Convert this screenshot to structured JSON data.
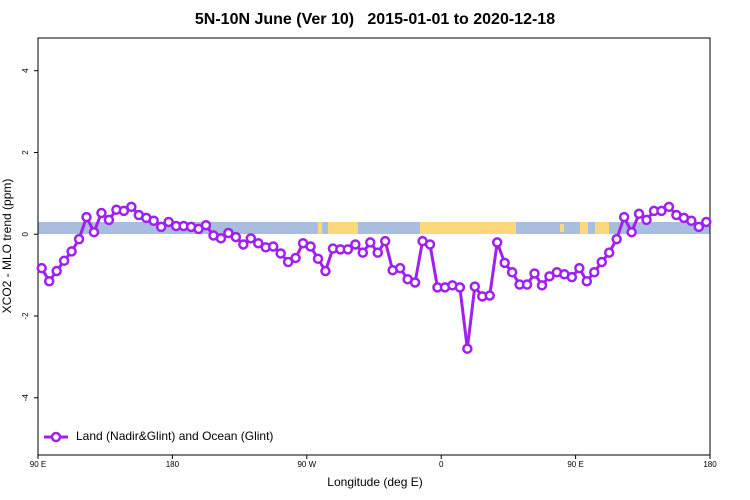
{
  "chart_data": {
    "type": "line",
    "title": "5N-10N June (Ver 10)   2015-01-01 to 2020-12-18",
    "x_label": "Longitude (deg E)",
    "y_label": "XCO2 - MLO trend (ppm)",
    "x": [
      92.5,
      97.5,
      102.5,
      107.5,
      112.5,
      117.5,
      122.5,
      127.5,
      132.5,
      137.5,
      142.5,
      147.5,
      152.5,
      157.5,
      162.5,
      167.5,
      172.5,
      177.5,
      182.5,
      187.5,
      192.5,
      197.5,
      202.5,
      207.5,
      212.5,
      217.5,
      222.5,
      227.5,
      232.5,
      237.5,
      242.5,
      247.5,
      252.5,
      257.5,
      262.5,
      267.5,
      272.5,
      277.5,
      282.5,
      287.5,
      292.5,
      297.5,
      302.5,
      307.5,
      312.5,
      317.5,
      322.5,
      327.5,
      332.5,
      337.5,
      342.5,
      347.5,
      352.5,
      357.5,
      362.5,
      367.5,
      372.5,
      377.5,
      382.5,
      387.5,
      392.5,
      397.5,
      402.5,
      407.5,
      412.5,
      417.5,
      422.5,
      427.5,
      432.5,
      437.5,
      442.5,
      447.5,
      452.5,
      457.5,
      462.5,
      467.5,
      472.5,
      477.5,
      482.5,
      487.5,
      492.5,
      497.5,
      502.5,
      507.5,
      512.5,
      517.5,
      522.5,
      527.5,
      532.5,
      537.5
    ],
    "series": [
      {
        "name": "Land (Nadir&Glint) and Ocean (Glint)",
        "color": "#a020f0",
        "values": [
          -0.83,
          -1.15,
          -0.9,
          -0.65,
          -0.42,
          -0.12,
          0.42,
          0.05,
          0.52,
          0.35,
          0.6,
          0.57,
          0.67,
          0.47,
          0.4,
          0.33,
          0.18,
          0.3,
          0.2,
          0.2,
          0.18,
          0.13,
          0.22,
          -0.03,
          -0.1,
          0.03,
          -0.07,
          -0.25,
          -0.1,
          -0.22,
          -0.32,
          -0.3,
          -0.47,
          -0.68,
          -0.58,
          -0.22,
          -0.3,
          -0.6,
          -0.9,
          -0.35,
          -0.37,
          -0.37,
          -0.25,
          -0.45,
          -0.2,
          -0.45,
          -0.17,
          -0.88,
          -0.83,
          -1.1,
          -1.18,
          -0.17,
          -0.25,
          -1.3,
          -1.3,
          -1.25,
          -1.3,
          -2.8,
          -1.28,
          -1.52,
          -1.5,
          -0.2,
          -0.7,
          -0.93,
          -1.23,
          -1.23,
          -0.96,
          -1.25,
          -1.03,
          -0.93,
          -0.98,
          -1.05,
          -0.83,
          -1.15,
          -0.93,
          -0.68,
          -0.45,
          -0.12,
          0.42,
          0.05,
          0.5,
          0.35,
          0.57,
          0.57,
          0.67,
          0.47,
          0.4,
          0.33,
          0.18,
          0.3
        ]
      }
    ],
    "xlim": [
      90,
      540
    ],
    "xticks": [
      {
        "value": 90,
        "label": "90 E"
      },
      {
        "value": 180,
        "label": "180"
      },
      {
        "value": 270,
        "label": "90 W"
      },
      {
        "value": 360,
        "label": "0"
      },
      {
        "value": 450,
        "label": "90 E"
      },
      {
        "value": 540,
        "label": "180"
      }
    ],
    "ylim": [
      -5.4,
      4.8
    ],
    "yticks": [
      -4,
      -2,
      0,
      2,
      4
    ],
    "legend": "bottom-left"
  }
}
